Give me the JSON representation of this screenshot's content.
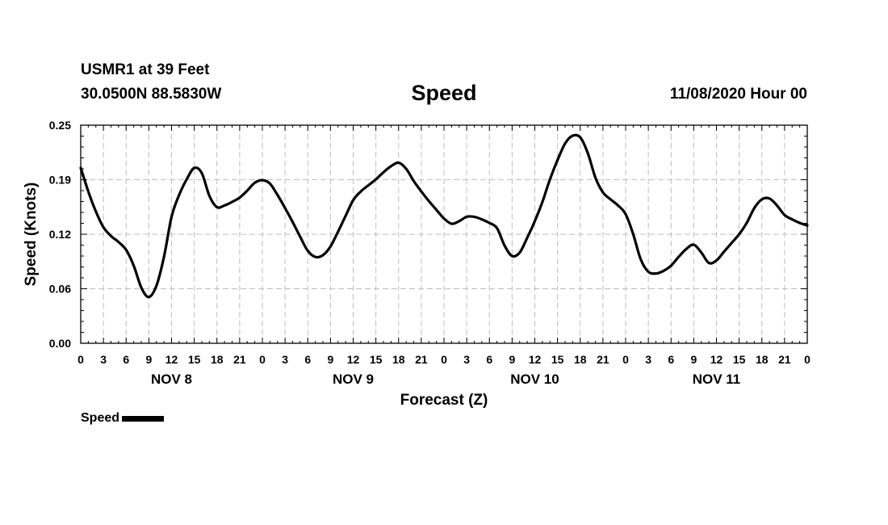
{
  "header": {
    "station": "USMR1 at 39 Feet",
    "coords": "30.0500N 88.5830W",
    "title": "Speed",
    "rundate": "11/08/2020 Hour 00"
  },
  "legend": {
    "label": "Speed",
    "color": "#000000"
  },
  "chart_data": {
    "type": "line",
    "title": "Speed",
    "xlabel": "Forecast (Z)",
    "ylabel": "Speed (Knots)",
    "x_unit": "forecast hour",
    "xlim": [
      0,
      96
    ],
    "ylim": [
      0,
      0.25
    ],
    "yticks": [
      "0.00",
      "0.06",
      "0.12",
      "0.19",
      "0.25"
    ],
    "ytick_values": [
      0,
      0.0625,
      0.125,
      0.1875,
      0.25
    ],
    "xtick_labels": [
      "0",
      "3",
      "6",
      "9",
      "12",
      "15",
      "18",
      "21",
      "0",
      "3",
      "6",
      "9",
      "12",
      "15",
      "18",
      "21",
      "0",
      "3",
      "6",
      "9",
      "12",
      "15",
      "18",
      "21",
      "0",
      "3",
      "6",
      "9",
      "12",
      "15",
      "18",
      "21",
      "0"
    ],
    "day_labels": [
      {
        "label": "NOV 8",
        "hour": 12
      },
      {
        "label": "NOV 9",
        "hour": 36
      },
      {
        "label": "NOV 10",
        "hour": 60
      },
      {
        "label": "NOV 11",
        "hour": 84
      }
    ],
    "grid": true,
    "legend_position": "bottom-left",
    "series": [
      {
        "name": "Speed",
        "color": "#000000",
        "x": [
          0,
          1,
          2,
          3,
          4,
          5,
          6,
          7,
          8,
          9,
          10,
          11,
          12,
          13,
          14,
          15,
          16,
          17,
          18,
          19,
          20,
          21,
          22,
          23,
          24,
          25,
          26,
          27,
          28,
          29,
          30,
          31,
          32,
          33,
          34,
          35,
          36,
          37,
          38,
          39,
          40,
          41,
          42,
          43,
          44,
          45,
          46,
          47,
          48,
          49,
          50,
          51,
          52,
          53,
          54,
          55,
          56,
          57,
          58,
          59,
          60,
          61,
          62,
          63,
          64,
          65,
          66,
          67,
          68,
          69,
          70,
          71,
          72,
          73,
          74,
          75,
          76,
          77,
          78,
          79,
          80,
          81,
          82,
          83,
          84,
          85,
          86,
          87,
          88,
          89,
          90,
          91,
          92,
          93,
          94,
          95,
          96
        ],
        "y": [
          0.201,
          0.174,
          0.151,
          0.133,
          0.123,
          0.116,
          0.107,
          0.089,
          0.064,
          0.053,
          0.066,
          0.099,
          0.145,
          0.17,
          0.188,
          0.201,
          0.195,
          0.169,
          0.156,
          0.158,
          0.162,
          0.167,
          0.175,
          0.184,
          0.187,
          0.183,
          0.17,
          0.155,
          0.139,
          0.122,
          0.106,
          0.099,
          0.101,
          0.111,
          0.128,
          0.146,
          0.164,
          0.174,
          0.181,
          0.188,
          0.196,
          0.203,
          0.207,
          0.2,
          0.186,
          0.174,
          0.163,
          0.153,
          0.143,
          0.137,
          0.14,
          0.145,
          0.145,
          0.142,
          0.138,
          0.132,
          0.112,
          0.1,
          0.104,
          0.121,
          0.14,
          0.162,
          0.188,
          0.21,
          0.229,
          0.238,
          0.236,
          0.218,
          0.19,
          0.173,
          0.165,
          0.158,
          0.148,
          0.125,
          0.096,
          0.082,
          0.08,
          0.083,
          0.089,
          0.099,
          0.108,
          0.113,
          0.104,
          0.092,
          0.095,
          0.105,
          0.115,
          0.125,
          0.138,
          0.155,
          0.165,
          0.166,
          0.158,
          0.147,
          0.142,
          0.138,
          0.135
        ]
      }
    ]
  }
}
